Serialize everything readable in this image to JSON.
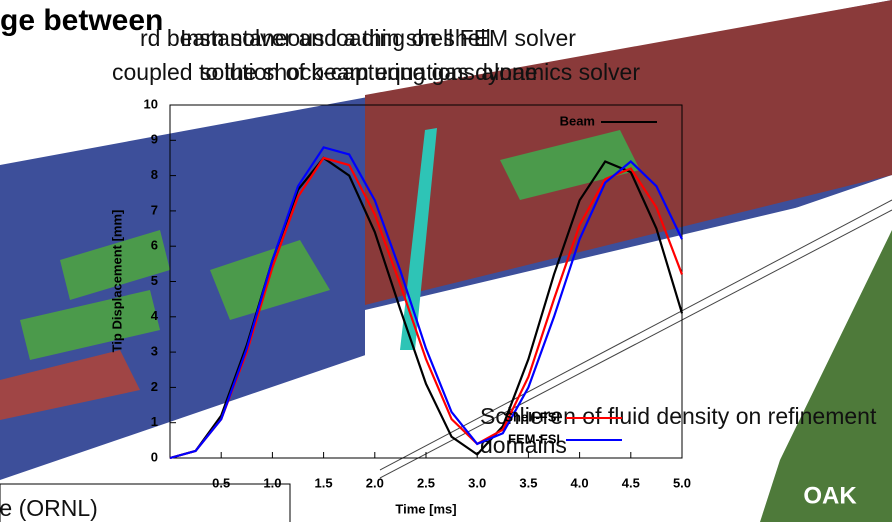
{
  "slide": {
    "heading": "ge between",
    "line1a": "rd beam solver and a thin shell FEM solver",
    "line1b": "Instantaneous loading on shell",
    "line2a": "coupled to the shock-capturing gas dynamics solver",
    "line2b": "solution of beam equations alone",
    "caption": "Schlieren of fluid density on refinement domains",
    "credit": "dike (ORNL)",
    "logo": "OAK"
  },
  "chart_data": {
    "type": "line",
    "xlabel": "Time [ms]",
    "ylabel": "Tip Displacement [mm]",
    "x": [
      0,
      0.25,
      0.5,
      0.75,
      1.0,
      1.25,
      1.5,
      1.75,
      2.0,
      2.25,
      2.5,
      2.75,
      3.0,
      3.25,
      3.5,
      3.75,
      4.0,
      4.25,
      4.5,
      4.75,
      5.0
    ],
    "series": [
      {
        "name": "Beam",
        "color": "#000000",
        "values": [
          0,
          0.2,
          1.2,
          3.2,
          5.6,
          7.6,
          8.5,
          8.0,
          6.4,
          4.2,
          2.1,
          0.6,
          0.1,
          0.9,
          2.8,
          5.2,
          7.3,
          8.4,
          8.1,
          6.5,
          4.1
        ]
      },
      {
        "name": "Shell-FSI",
        "color": "#ff0000",
        "values": [
          0,
          0.2,
          1.1,
          3.0,
          5.4,
          7.4,
          8.5,
          8.3,
          6.9,
          4.9,
          2.8,
          1.1,
          0.4,
          0.8,
          2.3,
          4.5,
          6.6,
          7.9,
          8.2,
          7.1,
          5.2
        ]
      },
      {
        "name": "FEM-FSI",
        "color": "#0000ff",
        "values": [
          0,
          0.2,
          1.1,
          3.1,
          5.6,
          7.7,
          8.8,
          8.6,
          7.3,
          5.3,
          3.1,
          1.3,
          0.4,
          0.7,
          2.0,
          4.0,
          6.2,
          7.8,
          8.4,
          7.7,
          6.2
        ]
      }
    ],
    "xlim": [
      0,
      5
    ],
    "ylim": [
      0,
      10
    ],
    "xticks": [
      {
        "value": 0.5,
        "label": "0.5"
      },
      {
        "value": 1,
        "label": "1.0"
      },
      {
        "value": 1.5,
        "label": "1.5"
      },
      {
        "value": 2,
        "label": "2.0"
      },
      {
        "value": 2.5,
        "label": "2.5"
      },
      {
        "value": 3,
        "label": "3.0"
      },
      {
        "value": 3.5,
        "label": "3.5"
      },
      {
        "value": 4,
        "label": "4.0"
      },
      {
        "value": 4.5,
        "label": "4.5"
      },
      {
        "value": 5,
        "label": "5.0"
      }
    ],
    "yticks": [
      0,
      1,
      2,
      3,
      4,
      5,
      6,
      7,
      8,
      9,
      10
    ]
  }
}
